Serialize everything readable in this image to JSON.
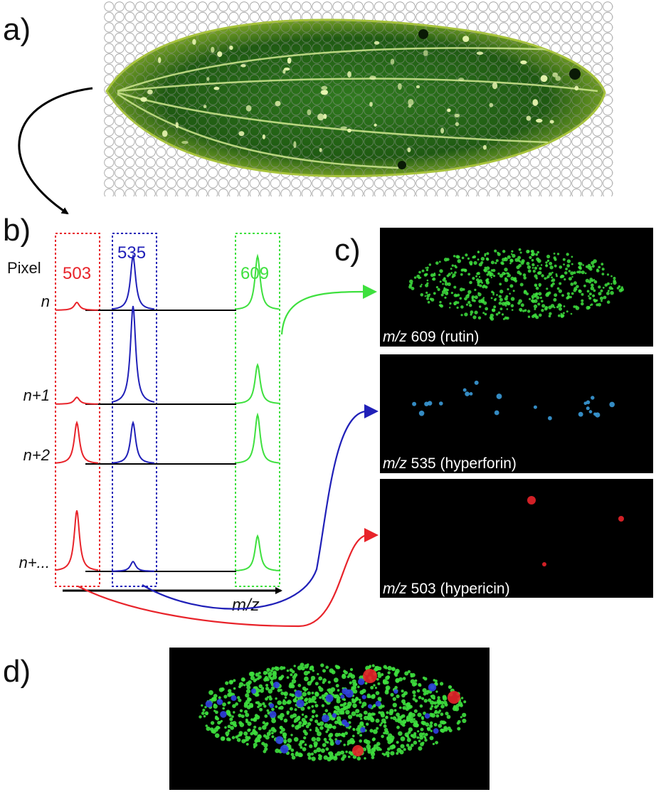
{
  "colors": {
    "red": "#e8232a",
    "blue": "#2020b8",
    "green": "#3ee03e",
    "black": "#000000"
  },
  "panels": {
    "a": {
      "letter": "a)"
    },
    "b": {
      "letter": "b)",
      "pixel_label": "Pixel",
      "peak_labels": [
        "503",
        "535",
        "609"
      ],
      "rows": [
        {
          "label": "n",
          "peak_503": 0.08,
          "peak_535": 0.55,
          "peak_609": 0.55
        },
        {
          "label": "n+1",
          "peak_503": 0.07,
          "peak_535": 1.0,
          "peak_609": 0.4
        },
        {
          "label": "n+2",
          "peak_503": 0.42,
          "peak_535": 0.42,
          "peak_609": 0.5
        },
        {
          "label": "n+...",
          "peak_503": 0.62,
          "peak_535": 0.1,
          "peak_609": 0.36
        }
      ],
      "axis_label": "m/z"
    },
    "c": {
      "letter": "c)",
      "images": [
        {
          "prefix": "m/z",
          "rest": " 609 (rutin)",
          "color": "#3ee03e"
        },
        {
          "prefix": "m/z",
          "rest": " 535 (hyperforin)",
          "color": "#3a9ad8"
        },
        {
          "prefix": "m/z",
          "rest": " 503 (hypericin)",
          "color": "#e8232a"
        }
      ]
    },
    "d": {
      "letter": "d)"
    }
  }
}
